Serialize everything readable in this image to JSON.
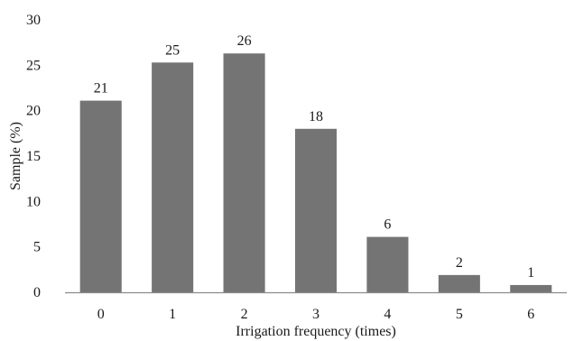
{
  "chart_data": {
    "type": "bar",
    "categories": [
      "0",
      "1",
      "2",
      "3",
      "4",
      "5",
      "6"
    ],
    "values": [
      21.1,
      25.3,
      26.3,
      18.0,
      6.1,
      1.9,
      0.8
    ],
    "data_labels": [
      "21",
      "25",
      "26",
      "18",
      "6",
      "2",
      "1"
    ],
    "xlabel": "Irrigation frequency (times)",
    "ylabel": "Sample (%)",
    "ylim": [
      0,
      30
    ],
    "yticks": [
      "0",
      "5",
      "10",
      "15",
      "20",
      "25",
      "30"
    ],
    "grid": false,
    "bar_color": "#747474",
    "axis_color": "#8c8c8c"
  }
}
